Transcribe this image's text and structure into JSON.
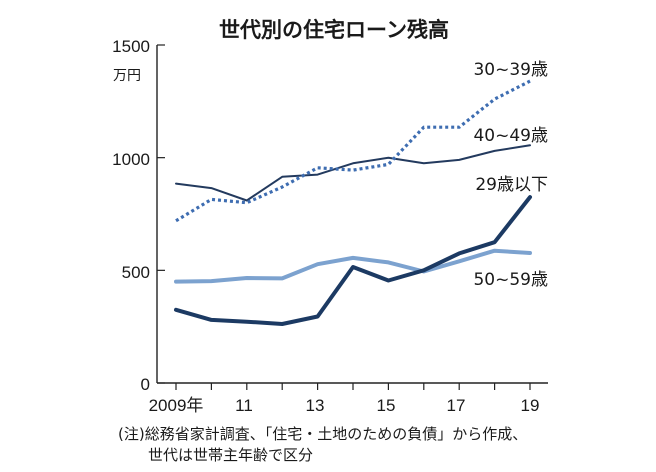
{
  "chart_data": {
    "type": "line",
    "title": "世代別の住宅ローン残高",
    "ylabel": "万円",
    "ylim": [
      0,
      1500
    ],
    "yticks": [
      "0",
      "500",
      "1000",
      "1500"
    ],
    "x": [
      2009,
      2010,
      2011,
      2012,
      2013,
      2014,
      2015,
      2016,
      2017,
      2018,
      2019
    ],
    "xticks": [
      {
        "x": 2009,
        "label": "2009年"
      },
      {
        "x": 2011,
        "label": "11"
      },
      {
        "x": 2013,
        "label": "13"
      },
      {
        "x": 2015,
        "label": "15"
      },
      {
        "x": 2017,
        "label": "17"
      },
      {
        "x": 2019,
        "label": "19"
      }
    ],
    "series": [
      {
        "name": "30~39歳",
        "color": "#3e6db1",
        "style": "dotted",
        "values": [
          720,
          815,
          800,
          870,
          955,
          945,
          970,
          1135,
          1135,
          1260,
          1340
        ]
      },
      {
        "name": "40~49歳",
        "color": "#233a5e",
        "style": "solid-thin",
        "values": [
          885,
          865,
          810,
          915,
          925,
          975,
          1000,
          975,
          990,
          1030,
          1055
        ]
      },
      {
        "name": "29歳以下",
        "color": "#1c3a63",
        "style": "solid-thick",
        "values": [
          325,
          280,
          272,
          262,
          295,
          515,
          455,
          500,
          575,
          625,
          825
        ]
      },
      {
        "name": "50~59歳",
        "color": "#7ca2cf",
        "style": "solid-thick",
        "values": [
          450,
          452,
          466,
          464,
          527,
          555,
          535,
          495,
          540,
          587,
          577
        ]
      }
    ],
    "notes": [
      "(注)総務省家計調査、「住宅・土地のための負債」から作成、",
      "世代は世帯主年齢で区分"
    ]
  }
}
